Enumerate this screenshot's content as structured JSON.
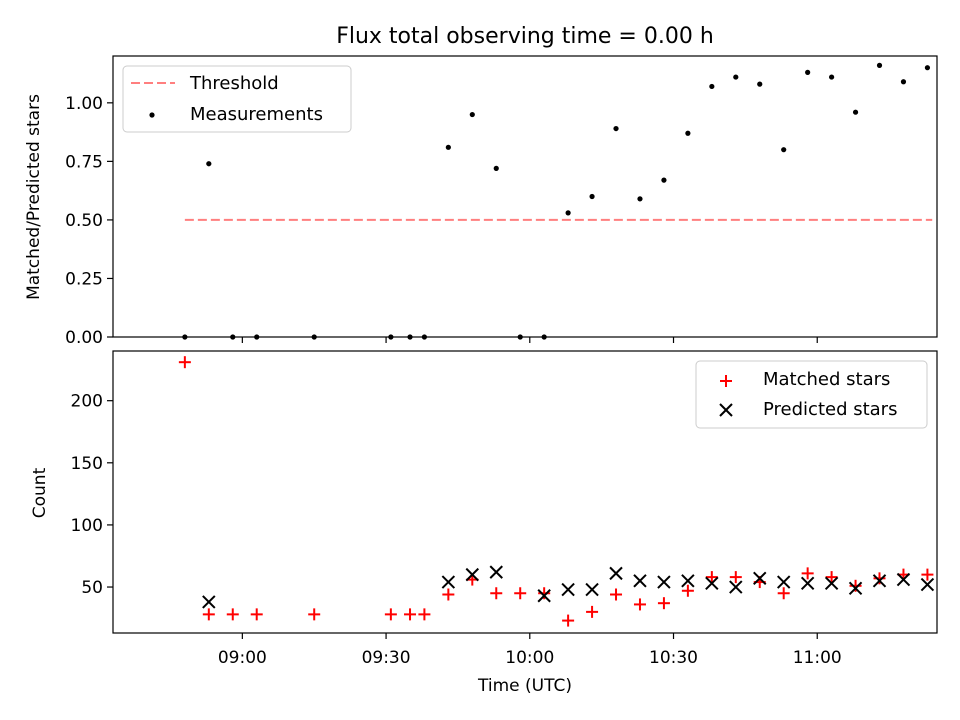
{
  "title": "Flux total observing time = 0.00 h",
  "colors": {
    "threshold": "#ff7f7f",
    "measurements": "#000000",
    "matched": "#ff0000",
    "predicted": "#000000"
  },
  "chart_data": [
    {
      "type": "scatter",
      "panel": "top",
      "title": "Flux total observing time = 0.00 h",
      "xlabel": "",
      "ylabel": "Matched/Predicted stars",
      "xlim": [
        "08:33",
        "11:25"
      ],
      "ylim": [
        0,
        1.2
      ],
      "yticks": [
        0.0,
        0.25,
        0.5,
        0.75,
        1.0
      ],
      "ytick_labels": [
        "0.00",
        "0.25",
        "0.50",
        "0.75",
        "1.00"
      ],
      "grid": false,
      "legend_position": "upper left",
      "series": [
        {
          "name": "Threshold",
          "kind": "dashed-line",
          "x": [
            "08:48",
            "11:24"
          ],
          "y": [
            0.5,
            0.5
          ]
        },
        {
          "name": "Measurements",
          "kind": "dot",
          "x": [
            "08:48",
            "08:53",
            "08:58",
            "09:03",
            "09:15",
            "09:31",
            "09:35",
            "09:38",
            "09:43",
            "09:48",
            "09:53",
            "09:58",
            "10:03",
            "10:08",
            "10:13",
            "10:18",
            "10:23",
            "10:28",
            "10:33",
            "10:38",
            "10:43",
            "10:48",
            "10:53",
            "10:58",
            "11:03",
            "11:08",
            "11:13",
            "11:18",
            "11:23"
          ],
          "y": [
            0.0,
            0.74,
            0.0,
            0.0,
            0.0,
            0.0,
            0.0,
            0.0,
            0.81,
            0.95,
            0.72,
            0.0,
            0.0,
            0.53,
            0.6,
            0.89,
            0.59,
            0.67,
            0.87,
            1.07,
            1.11,
            1.08,
            0.8,
            1.13,
            1.11,
            0.96,
            1.16,
            1.09,
            1.15
          ]
        }
      ]
    },
    {
      "type": "scatter",
      "panel": "bottom",
      "xlabel": "Time (UTC)",
      "ylabel": "Count",
      "xlim": [
        "08:33",
        "11:25"
      ],
      "ylim": [
        13,
        240
      ],
      "yticks": [
        50,
        100,
        150,
        200
      ],
      "xtick_labels": [
        "09:00",
        "09:30",
        "10:00",
        "10:30",
        "11:00"
      ],
      "grid": false,
      "legend_position": "upper right",
      "series": [
        {
          "name": "Matched stars",
          "marker": "+",
          "x": [
            "08:48",
            "08:53",
            "08:58",
            "09:03",
            "09:15",
            "09:31",
            "09:35",
            "09:38",
            "09:43",
            "09:48",
            "09:53",
            "09:58",
            "10:03",
            "10:08",
            "10:13",
            "10:18",
            "10:23",
            "10:28",
            "10:33",
            "10:38",
            "10:43",
            "10:48",
            "10:53",
            "10:58",
            "11:03",
            "11:08",
            "11:13",
            "11:18",
            "11:23"
          ],
          "y": [
            231,
            28,
            28,
            28,
            28,
            28,
            28,
            28,
            44,
            56,
            45,
            45,
            45,
            23,
            30,
            44,
            36,
            37,
            47,
            58,
            58,
            54,
            45,
            61,
            58,
            51,
            57,
            60,
            60
          ]
        },
        {
          "name": "Predicted stars",
          "marker": "x",
          "x": [
            "08:53",
            "09:43",
            "09:48",
            "09:53",
            "10:03",
            "10:08",
            "10:13",
            "10:18",
            "10:23",
            "10:28",
            "10:33",
            "10:38",
            "10:43",
            "10:48",
            "10:53",
            "10:58",
            "11:03",
            "11:08",
            "11:13",
            "11:18",
            "11:23"
          ],
          "y": [
            38,
            54,
            60,
            62,
            43,
            48,
            48,
            61,
            55,
            54,
            55,
            53,
            50,
            57,
            54,
            53,
            53,
            49,
            55,
            56,
            52
          ]
        }
      ]
    }
  ]
}
